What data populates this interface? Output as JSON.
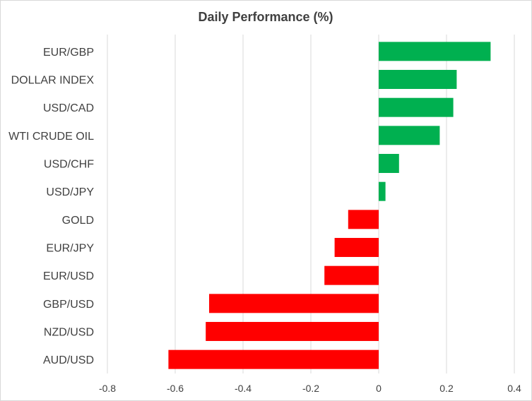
{
  "chart_data": {
    "type": "bar",
    "orientation": "horizontal",
    "title": "Daily Performance  (%)",
    "xlabel": "",
    "ylabel": "",
    "categories": [
      "EUR/GBP",
      "DOLLAR INDEX",
      "USD/CAD",
      "WTI CRUDE OIL",
      "USD/CHF",
      "USD/JPY",
      "GOLD",
      "EUR/JPY",
      "EUR/USD",
      "GBP/USD",
      "NZD/USD",
      "AUD/USD"
    ],
    "values": [
      0.33,
      0.23,
      0.22,
      0.18,
      0.06,
      0.02,
      -0.09,
      -0.13,
      -0.16,
      -0.5,
      -0.51,
      -0.62
    ],
    "xlim": [
      -0.8,
      0.4
    ],
    "xticks": [
      -0.8,
      -0.6,
      -0.4,
      -0.2,
      0,
      0.2,
      0.4
    ],
    "xtick_labels": [
      "-0.8",
      "-0.6",
      "-0.4",
      "-0.2",
      "0",
      "0.2",
      "0.4"
    ],
    "grid": "vertical",
    "legend": "none",
    "colors": {
      "positive": "#00b050",
      "negative": "#ff0000",
      "gridline": "#d9d9d9",
      "text": "#404040"
    }
  }
}
